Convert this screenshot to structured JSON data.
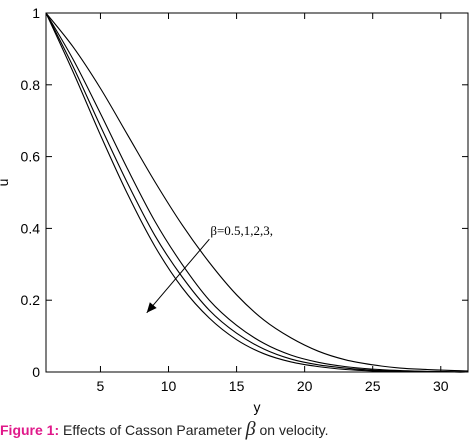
{
  "caption": {
    "label": "Figure 1:",
    "text_before": "Effects of Casson Parameter",
    "symbol": "β",
    "text_after": "on velocity."
  },
  "chart_data": {
    "type": "line",
    "title": "",
    "xlabel": "y",
    "ylabel": "u",
    "xlim": [
      1,
      32
    ],
    "ylim": [
      0,
      1
    ],
    "xticks": [
      5,
      10,
      15,
      20,
      25,
      30
    ],
    "yticks": [
      0,
      0.2,
      0.4,
      0.6,
      0.8,
      1
    ],
    "ytick_labels": [
      "0",
      "0.2",
      "0.4",
      "0.6",
      "0.8",
      "1"
    ],
    "grid": false,
    "legend": "none",
    "annotation": {
      "text": "β=0.5,1,2,3,",
      "arrow_from": [
        13.0,
        0.37
      ],
      "arrow_to": [
        8.4,
        0.165
      ]
    },
    "series": [
      {
        "x": [
          1,
          3,
          5,
          7,
          9,
          11,
          13,
          15,
          17,
          19,
          21,
          23,
          25,
          27,
          29,
          31,
          32
        ],
        "values": [
          1.0,
          0.905,
          0.79,
          0.66,
          0.53,
          0.41,
          0.305,
          0.215,
          0.145,
          0.095,
          0.058,
          0.034,
          0.02,
          0.011,
          0.007,
          0.004,
          0.003
        ]
      },
      {
        "x": [
          1,
          3,
          5,
          7,
          9,
          11,
          13,
          15,
          17,
          19,
          21,
          23,
          25,
          27,
          29,
          31,
          32
        ],
        "values": [
          1.0,
          0.87,
          0.72,
          0.565,
          0.42,
          0.3,
          0.2,
          0.13,
          0.08,
          0.047,
          0.027,
          0.015,
          0.008,
          0.004,
          0.002,
          0.001,
          0.001
        ]
      },
      {
        "x": [
          1,
          3,
          5,
          7,
          9,
          11,
          13,
          15,
          17,
          19,
          21,
          23,
          25,
          27,
          29,
          31,
          32
        ],
        "values": [
          1.0,
          0.85,
          0.685,
          0.525,
          0.38,
          0.265,
          0.172,
          0.108,
          0.064,
          0.036,
          0.02,
          0.011,
          0.005,
          0.003,
          0.001,
          0.0,
          0.0
        ]
      },
      {
        "x": [
          1,
          3,
          5,
          7,
          9,
          11,
          13,
          15,
          17,
          19,
          21,
          23,
          25,
          27,
          29,
          31,
          32
        ],
        "values": [
          1.0,
          0.835,
          0.66,
          0.495,
          0.35,
          0.235,
          0.15,
          0.09,
          0.051,
          0.028,
          0.015,
          0.007,
          0.003,
          0.002,
          0.001,
          0.0,
          0.0
        ]
      }
    ]
  }
}
